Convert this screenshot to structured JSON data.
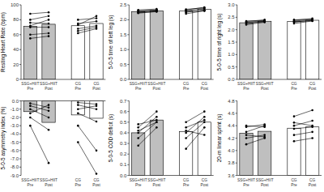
{
  "chart_data": [
    {
      "type": "bar",
      "y_label": "Resting Heart Rate (bpm)",
      "categories": [
        "SSG+HIIT Pre",
        "SSG+HIIT Post",
        "CG Pre",
        "CG Post"
      ],
      "values": [
        71,
        74,
        72,
        75
      ],
      "colors": [
        "#bfbfbf",
        "#bfbfbf",
        "#ffffff",
        "#ffffff"
      ],
      "ylim": [
        0,
        100
      ],
      "yticks": [
        0,
        20,
        40,
        60,
        80,
        100
      ],
      "series": [
        {
          "type": "line",
          "color": "#000000",
          "marker": "circle",
          "values": [
            88,
            90,
            null,
            null
          ]
        },
        {
          "type": "line",
          "color": "#000000",
          "marker": "circle",
          "values": [
            80,
            85,
            null,
            null
          ]
        },
        {
          "type": "line",
          "color": "#000000",
          "marker": "circle",
          "values": [
            76,
            75,
            null,
            null
          ]
        },
        {
          "type": "line",
          "color": "#000000",
          "marker": "circle",
          "values": [
            72,
            80,
            null,
            null
          ]
        },
        {
          "type": "line",
          "color": "#000000",
          "marker": "circle",
          "values": [
            70,
            70,
            null,
            null
          ]
        },
        {
          "type": "line",
          "color": "#000000",
          "marker": "circle",
          "values": [
            60,
            62,
            null,
            null
          ]
        },
        {
          "type": "line",
          "color": "#000000",
          "marker": "circle",
          "values": [
            55,
            58,
            null,
            null
          ]
        },
        {
          "type": "line",
          "color": "#000000",
          "marker": "circle",
          "values": [
            null,
            null,
            80,
            82
          ]
        },
        {
          "type": "line",
          "color": "#000000",
          "marker": "circle",
          "values": [
            null,
            null,
            75,
            78
          ]
        },
        {
          "type": "line",
          "color": "#000000",
          "marker": "circle",
          "values": [
            null,
            null,
            73,
            85
          ]
        },
        {
          "type": "line",
          "color": "#000000",
          "marker": "circle",
          "values": [
            null,
            null,
            68,
            72
          ]
        },
        {
          "type": "line",
          "color": "#000000",
          "marker": "circle",
          "values": [
            null,
            null,
            65,
            70
          ]
        },
        {
          "type": "line",
          "color": "#000000",
          "marker": "circle",
          "values": [
            null,
            null,
            62,
            68
          ]
        }
      ]
    },
    {
      "type": "bar",
      "y_label": "5-0-5 time of left leg (s)",
      "categories": [
        "SSG+HIIT Pre",
        "SSG+HIIT Post",
        "CG Pre",
        "CG Post"
      ],
      "values": [
        2.27,
        2.3,
        2.29,
        2.35
      ],
      "colors": [
        "#bfbfbf",
        "#bfbfbf",
        "#ffffff",
        "#ffffff"
      ],
      "ylim": [
        0,
        2.5
      ],
      "yticks": [
        {
          "value": 0,
          "label": "0.0"
        },
        0.5,
        {
          "value": 1,
          "label": "1.0"
        },
        1.5,
        {
          "value": 2,
          "label": "2.0"
        },
        2.5
      ],
      "series": [
        {
          "type": "line",
          "color": "#000000",
          "marker": "circle",
          "values": [
            2.22,
            2.28,
            null,
            null
          ]
        },
        {
          "type": "line",
          "color": "#000000",
          "marker": "circle",
          "values": [
            2.25,
            2.3,
            null,
            null
          ]
        },
        {
          "type": "line",
          "color": "#000000",
          "marker": "circle",
          "values": [
            2.28,
            2.33,
            null,
            null
          ]
        },
        {
          "type": "line",
          "color": "#000000",
          "marker": "circle",
          "values": [
            2.3,
            2.32,
            null,
            null
          ]
        },
        {
          "type": "line",
          "color": "#000000",
          "marker": "circle",
          "values": [
            2.33,
            2.36,
            null,
            null
          ]
        },
        {
          "type": "line",
          "color": "#000000",
          "marker": "circle",
          "values": [
            2.24,
            2.27,
            null,
            null
          ]
        },
        {
          "type": "line",
          "color": "#000000",
          "marker": "circle",
          "values": [
            null,
            null,
            2.2,
            2.3
          ]
        },
        {
          "type": "line",
          "color": "#000000",
          "marker": "circle",
          "values": [
            null,
            null,
            2.25,
            2.33
          ]
        },
        {
          "type": "line",
          "color": "#000000",
          "marker": "circle",
          "values": [
            null,
            null,
            2.3,
            2.38
          ]
        },
        {
          "type": "line",
          "color": "#000000",
          "marker": "circle",
          "values": [
            null,
            null,
            2.33,
            2.42
          ]
        },
        {
          "type": "line",
          "color": "#000000",
          "marker": "circle",
          "values": [
            null,
            null,
            2.35,
            2.4
          ]
        },
        {
          "type": "line",
          "color": "#000000",
          "marker": "circle",
          "values": [
            null,
            null,
            2.28,
            2.3
          ]
        }
      ]
    },
    {
      "type": "bar",
      "y_label": "5-0-5 time of right leg (s)",
      "categories": [
        "SSG+HIIT Pre",
        "SSG+HIIT Post",
        "CG Pre",
        "CG Post"
      ],
      "values": [
        2.28,
        2.34,
        2.33,
        2.38
      ],
      "colors": [
        "#bfbfbf",
        "#bfbfbf",
        "#ffffff",
        "#ffffff"
      ],
      "ylim": [
        0,
        3
      ],
      "yticks": [
        {
          "value": 0,
          "label": "0.0"
        },
        0.5,
        {
          "value": 1,
          "label": "1.0"
        },
        1.5,
        {
          "value": 2,
          "label": "2.0"
        },
        2.5,
        {
          "value": 3,
          "label": "3.0"
        }
      ],
      "series": [
        {
          "type": "line",
          "color": "#000000",
          "marker": "circle",
          "values": [
            2.2,
            2.3,
            null,
            null
          ]
        },
        {
          "type": "line",
          "color": "#000000",
          "marker": "circle",
          "values": [
            2.25,
            2.32,
            null,
            null
          ]
        },
        {
          "type": "line",
          "color": "#000000",
          "marker": "circle",
          "values": [
            2.3,
            2.36,
            null,
            null
          ]
        },
        {
          "type": "line",
          "color": "#000000",
          "marker": "circle",
          "values": [
            2.33,
            2.4,
            null,
            null
          ]
        },
        {
          "type": "line",
          "color": "#000000",
          "marker": "circle",
          "values": [
            2.27,
            2.33,
            null,
            null
          ]
        },
        {
          "type": "line",
          "color": "#000000",
          "marker": "circle",
          "values": [
            2.35,
            2.37,
            null,
            null
          ]
        },
        {
          "type": "line",
          "color": "#000000",
          "marker": "circle",
          "values": [
            null,
            null,
            2.25,
            2.35
          ]
        },
        {
          "type": "line",
          "color": "#000000",
          "marker": "circle",
          "values": [
            null,
            null,
            2.3,
            2.38
          ]
        },
        {
          "type": "line",
          "color": "#000000",
          "marker": "circle",
          "values": [
            null,
            null,
            2.35,
            2.4
          ]
        },
        {
          "type": "line",
          "color": "#000000",
          "marker": "circle",
          "values": [
            null,
            null,
            2.38,
            2.45
          ]
        },
        {
          "type": "line",
          "color": "#000000",
          "marker": "circle",
          "values": [
            null,
            null,
            2.32,
            2.36
          ]
        },
        {
          "type": "line",
          "color": "#000000",
          "marker": "circle",
          "values": [
            null,
            null,
            2.4,
            2.42
          ]
        }
      ]
    },
    {
      "type": "bar",
      "y_label": "5-0-5 asymmetry index (%)",
      "categories": [
        "SSG+HIIT Pre",
        "SSG+HIIT Post",
        "CG Pre",
        "CG Post"
      ],
      "values": [
        -1.3,
        -2.6,
        -1.7,
        -2.1
      ],
      "colors": [
        "#bfbfbf",
        "#bfbfbf",
        "#ffffff",
        "#ffffff"
      ],
      "ylim": [
        -9,
        0
      ],
      "yticks": [
        {
          "value": -9,
          "label": "-9.0"
        },
        {
          "value": -8,
          "label": "-8.0"
        },
        {
          "value": -7,
          "label": "-7.0"
        },
        {
          "value": -6,
          "label": "-6.0"
        },
        {
          "value": -5,
          "label": "-5.0"
        },
        {
          "value": -4,
          "label": "-4.0"
        },
        {
          "value": -3,
          "label": "-3.0"
        },
        {
          "value": -2,
          "label": "-2.0"
        },
        {
          "value": -1,
          "label": "-1.0"
        },
        {
          "value": 0,
          "label": "0.0"
        }
      ],
      "series": [
        {
          "type": "line",
          "color": "#000000",
          "marker": "circle",
          "values": [
            -0.3,
            -0.8,
            null,
            null
          ]
        },
        {
          "type": "line",
          "color": "#000000",
          "marker": "circle",
          "values": [
            -0.6,
            -1.2,
            null,
            null
          ]
        },
        {
          "type": "line",
          "color": "#000000",
          "marker": "circle",
          "values": [
            -1.0,
            -2.0,
            null,
            null
          ]
        },
        {
          "type": "line",
          "color": "#000000",
          "marker": "circle",
          "values": [
            -1.5,
            -0.5,
            null,
            null
          ]
        },
        {
          "type": "line",
          "color": "#000000",
          "marker": "circle",
          "values": [
            -2.0,
            -3.5,
            null,
            null
          ]
        },
        {
          "type": "line",
          "color": "#000000",
          "marker": "circle",
          "values": [
            -3.0,
            -7.5,
            null,
            null
          ]
        },
        {
          "type": "line",
          "color": "#000000",
          "marker": "circle",
          "values": [
            null,
            null,
            -0.2,
            -0.4
          ]
        },
        {
          "type": "line",
          "color": "#000000",
          "marker": "circle",
          "values": [
            null,
            null,
            -0.5,
            -1.0
          ]
        },
        {
          "type": "line",
          "color": "#000000",
          "marker": "circle",
          "values": [
            null,
            null,
            -1.0,
            -0.6
          ]
        },
        {
          "type": "line",
          "color": "#000000",
          "marker": "circle",
          "values": [
            null,
            null,
            -1.5,
            -2.5
          ]
        },
        {
          "type": "line",
          "color": "#000000",
          "marker": "circle",
          "values": [
            null,
            null,
            -3.0,
            -6.0
          ]
        },
        {
          "type": "line",
          "color": "#000000",
          "marker": "circle",
          "values": [
            null,
            null,
            -5.0,
            -8.8
          ]
        }
      ]
    },
    {
      "type": "bar",
      "y_label": "5-0-5 COD deficit (s)",
      "categories": [
        "SSG+HIIT Pre",
        "SSG+HIIT Post",
        "CG Pre",
        "CG Post"
      ],
      "values": [
        0.4,
        0.52,
        0.41,
        0.5
      ],
      "colors": [
        "#bfbfbf",
        "#bfbfbf",
        "#ffffff",
        "#ffffff"
      ],
      "ylim": [
        0,
        0.7
      ],
      "yticks": [
        {
          "value": 0,
          "label": "0.0"
        },
        0.1,
        0.2,
        0.3,
        0.4,
        0.5,
        0.6,
        0.7
      ],
      "series": [
        {
          "type": "line",
          "color": "#000000",
          "marker": "circle",
          "values": [
            0.28,
            0.45,
            null,
            null
          ]
        },
        {
          "type": "line",
          "color": "#000000",
          "marker": "circle",
          "values": [
            0.35,
            0.5,
            null,
            null
          ]
        },
        {
          "type": "line",
          "color": "#000000",
          "marker": "circle",
          "values": [
            0.4,
            0.55,
            null,
            null
          ]
        },
        {
          "type": "line",
          "color": "#000000",
          "marker": "circle",
          "values": [
            0.45,
            0.6,
            null,
            null
          ]
        },
        {
          "type": "line",
          "color": "#000000",
          "marker": "circle",
          "values": [
            0.48,
            0.52,
            null,
            null
          ]
        },
        {
          "type": "line",
          "color": "#000000",
          "marker": "circle",
          "values": [
            0.42,
            0.5,
            null,
            null
          ]
        },
        {
          "type": "line",
          "color": "#000000",
          "marker": "circle",
          "values": [
            null,
            null,
            0.25,
            0.45
          ]
        },
        {
          "type": "line",
          "color": "#000000",
          "marker": "circle",
          "values": [
            null,
            null,
            0.35,
            0.5
          ]
        },
        {
          "type": "line",
          "color": "#000000",
          "marker": "circle",
          "values": [
            null,
            null,
            0.4,
            0.55
          ]
        },
        {
          "type": "line",
          "color": "#000000",
          "marker": "circle",
          "values": [
            null,
            null,
            0.45,
            0.52
          ]
        },
        {
          "type": "line",
          "color": "#000000",
          "marker": "circle",
          "values": [
            null,
            null,
            0.5,
            0.6
          ]
        },
        {
          "type": "line",
          "color": "#000000",
          "marker": "circle",
          "values": [
            null,
            null,
            0.42,
            0.38
          ]
        }
      ]
    },
    {
      "type": "bar",
      "y_label": "20-m linear sprint (s)",
      "categories": [
        "SSG+HIIT Pre",
        "SSG+HIIT Post",
        "CG Pre",
        "CG Post"
      ],
      "values": [
        4.28,
        4.31,
        4.36,
        4.38
      ],
      "colors": [
        "#bfbfbf",
        "#bfbfbf",
        "#ffffff",
        "#ffffff"
      ],
      "ylim": [
        3.6,
        4.8
      ],
      "yticks": [
        3.6,
        3.8,
        {
          "value": 4,
          "label": "4.0"
        },
        4.2,
        4.4,
        4.6,
        4.8
      ],
      "series": [
        {
          "type": "line",
          "color": "#000000",
          "marker": "circle",
          "values": [
            4.1,
            4.2,
            null,
            null
          ]
        },
        {
          "type": "line",
          "color": "#000000",
          "marker": "circle",
          "values": [
            4.2,
            4.25,
            null,
            null
          ]
        },
        {
          "type": "line",
          "color": "#000000",
          "marker": "circle",
          "values": [
            4.25,
            4.22,
            null,
            null
          ]
        },
        {
          "type": "line",
          "color": "#000000",
          "marker": "circle",
          "values": [
            4.3,
            4.4,
            null,
            null
          ]
        },
        {
          "type": "line",
          "color": "#000000",
          "marker": "circle",
          "values": [
            4.38,
            4.42,
            null,
            null
          ]
        },
        {
          "type": "line",
          "color": "#000000",
          "marker": "circle",
          "values": [
            4.4,
            4.38,
            null,
            null
          ]
        },
        {
          "type": "line",
          "color": "#000000",
          "marker": "circle",
          "values": [
            null,
            null,
            4.15,
            4.2
          ]
        },
        {
          "type": "line",
          "color": "#000000",
          "marker": "circle",
          "values": [
            null,
            null,
            4.25,
            4.3
          ]
        },
        {
          "type": "line",
          "color": "#000000",
          "marker": "circle",
          "values": [
            null,
            null,
            4.35,
            4.38
          ]
        },
        {
          "type": "line",
          "color": "#000000",
          "marker": "circle",
          "values": [
            null,
            null,
            4.45,
            4.4
          ]
        },
        {
          "type": "line",
          "color": "#000000",
          "marker": "circle",
          "values": [
            null,
            null,
            4.55,
            4.65
          ]
        },
        {
          "type": "line",
          "color": "#000000",
          "marker": "circle",
          "values": [
            null,
            null,
            4.4,
            4.48
          ]
        }
      ]
    }
  ]
}
